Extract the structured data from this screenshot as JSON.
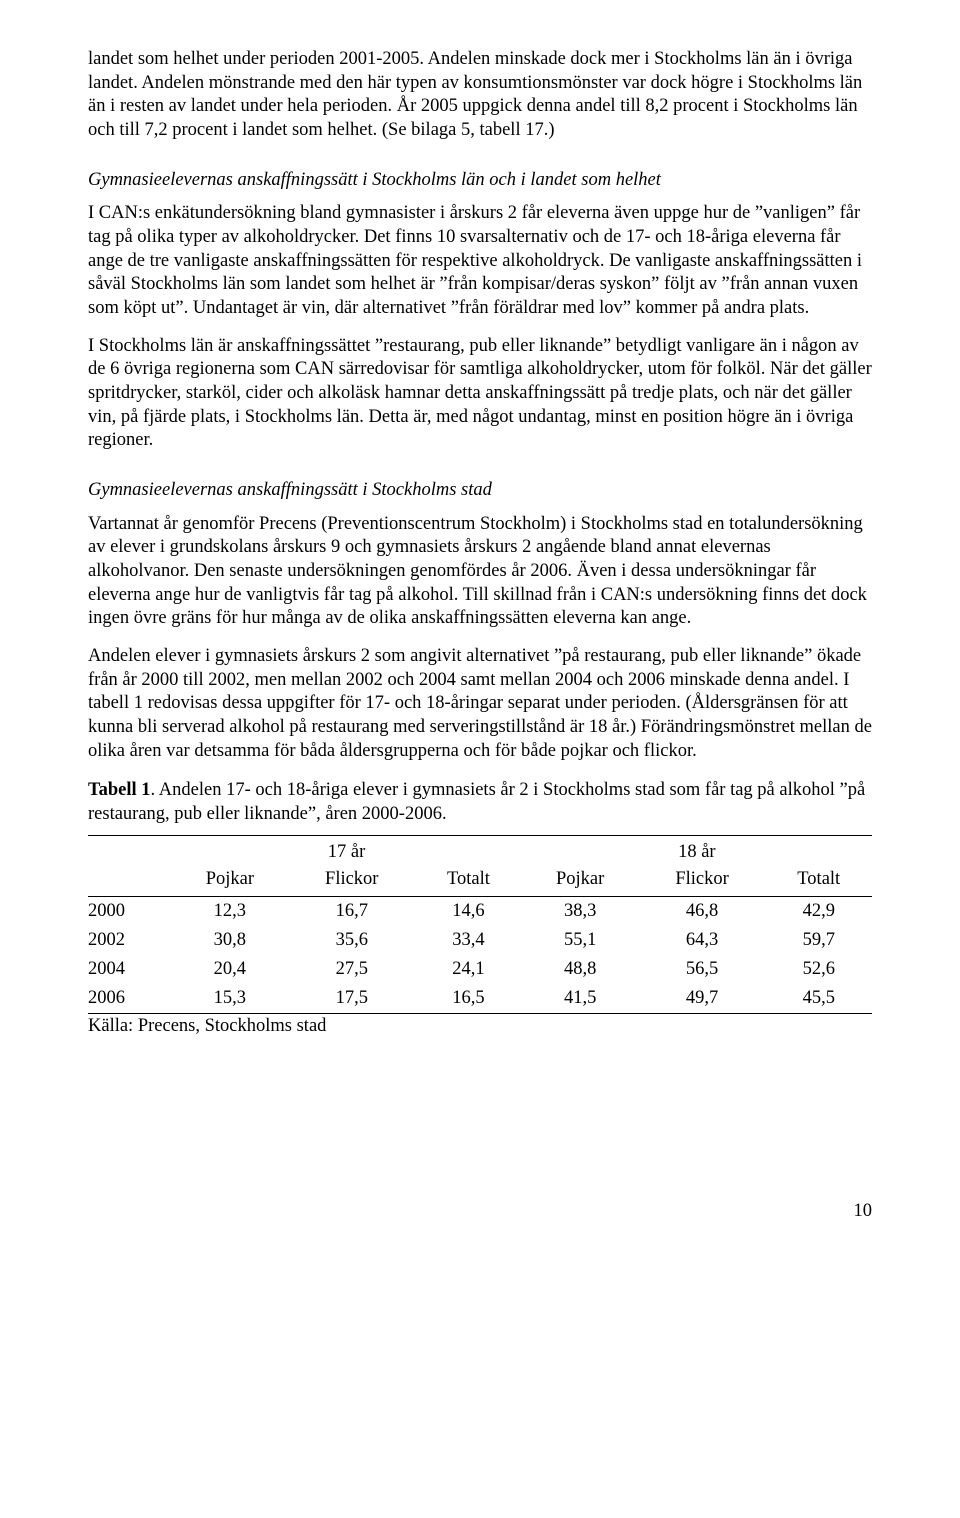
{
  "paragraphs": {
    "p1": "landet som helhet under perioden 2001-2005. Andelen minskade dock mer i Stockholms län än i övriga landet. Andelen mönstrande med den här typen av konsumtionsmönster var dock högre i Stockholms län än i resten av landet under hela perioden. År 2005 uppgick denna andel till 8,2 procent i Stockholms län och till 7,2 procent i landet som helhet. (Se bilaga 5, tabell 17.)",
    "h1": "Gymnasieelevernas anskaffningssätt i Stockholms län och i landet som helhet",
    "p2": "I CAN:s enkätundersökning bland gymnasister i årskurs 2 får eleverna även uppge hur de ”vanligen” får tag på olika typer av alkoholdrycker. Det finns 10 svarsalternativ och de 17- och 18-åriga eleverna får ange de tre vanligaste anskaffningssätten för respektive alkoholdryck. De vanligaste anskaffningssätten i såväl Stockholms län som landet som helhet är ”från kompisar/deras syskon” följt av ”från annan vuxen som köpt ut”. Undantaget är vin, där alternativet ”från föräldrar med lov” kommer på andra plats.",
    "p3": "I Stockholms län är anskaffningssättet ”restaurang, pub eller liknande” betydligt vanligare än i någon av de 6 övriga regionerna som CAN särredovisar för samtliga alkoholdrycker, utom för folköl. När det gäller spritdrycker, starköl, cider och alkoläsk hamnar detta anskaffningssätt på tredje plats, och när det gäller vin, på fjärde plats, i Stockholms län. Detta är, med något undantag, minst en position högre än i övriga regioner.",
    "h2": "Gymnasieelevernas anskaffningssätt i Stockholms stad",
    "p4": "Vartannat år genomför Precens (Preventionscentrum Stockholm) i Stockholms stad en totalundersökning av elever i grundskolans årskurs 9 och gymnasiets årskurs 2 angående bland annat elevernas alkoholvanor. Den senaste undersökningen genomfördes år 2006. Även i dessa undersökningar får eleverna ange hur de vanligtvis får tag på alkohol. Till skillnad från i CAN:s undersökning finns det dock ingen övre gräns för hur många av de olika anskaffningssätten eleverna kan ange.",
    "p5": "Andelen elever i gymnasiets årskurs 2 som angivit alternativet ”på restaurang, pub eller liknande” ökade från år 2000 till 2002, men mellan 2002 och 2004 samt mellan 2004 och 2006 minskade denna andel. I tabell 1 redovisas dessa uppgifter för 17- och 18-åringar separat under perioden. (Åldersgränsen för att kunna bli serverad alkohol på restaurang med serveringstillstånd är 18 år.) Förändringsmönstret mellan de olika åren var detsamma för båda åldersgrupperna och för både pojkar och flickor."
  },
  "table": {
    "caption_bold": "Tabell 1",
    "caption_rest": ". Andelen 17- och 18-åriga elever i gymnasiets år 2 i Stockholms stad som får tag på alkohol ”på restaurang, pub eller liknande”, åren 2000-2006.",
    "group_headers": {
      "g1": "17 år",
      "g2": "18 år"
    },
    "sub_headers": {
      "c1": "Pojkar",
      "c2": "Flickor",
      "c3": "Totalt",
      "c4": "Pojkar",
      "c5": "Flickor",
      "c6": "Totalt"
    },
    "rows": [
      {
        "year": "2000",
        "v": [
          "12,3",
          "16,7",
          "14,6",
          "38,3",
          "46,8",
          "42,9"
        ]
      },
      {
        "year": "2002",
        "v": [
          "30,8",
          "35,6",
          "33,4",
          "55,1",
          "64,3",
          "59,7"
        ]
      },
      {
        "year": "2004",
        "v": [
          "20,4",
          "27,5",
          "24,1",
          "48,8",
          "56,5",
          "52,6"
        ]
      },
      {
        "year": "2006",
        "v": [
          "15,3",
          "17,5",
          "16,5",
          "41,5",
          "49,7",
          "45,5"
        ]
      }
    ],
    "source": "Källa: Precens, Stockholms stad"
  },
  "page_number": "10"
}
